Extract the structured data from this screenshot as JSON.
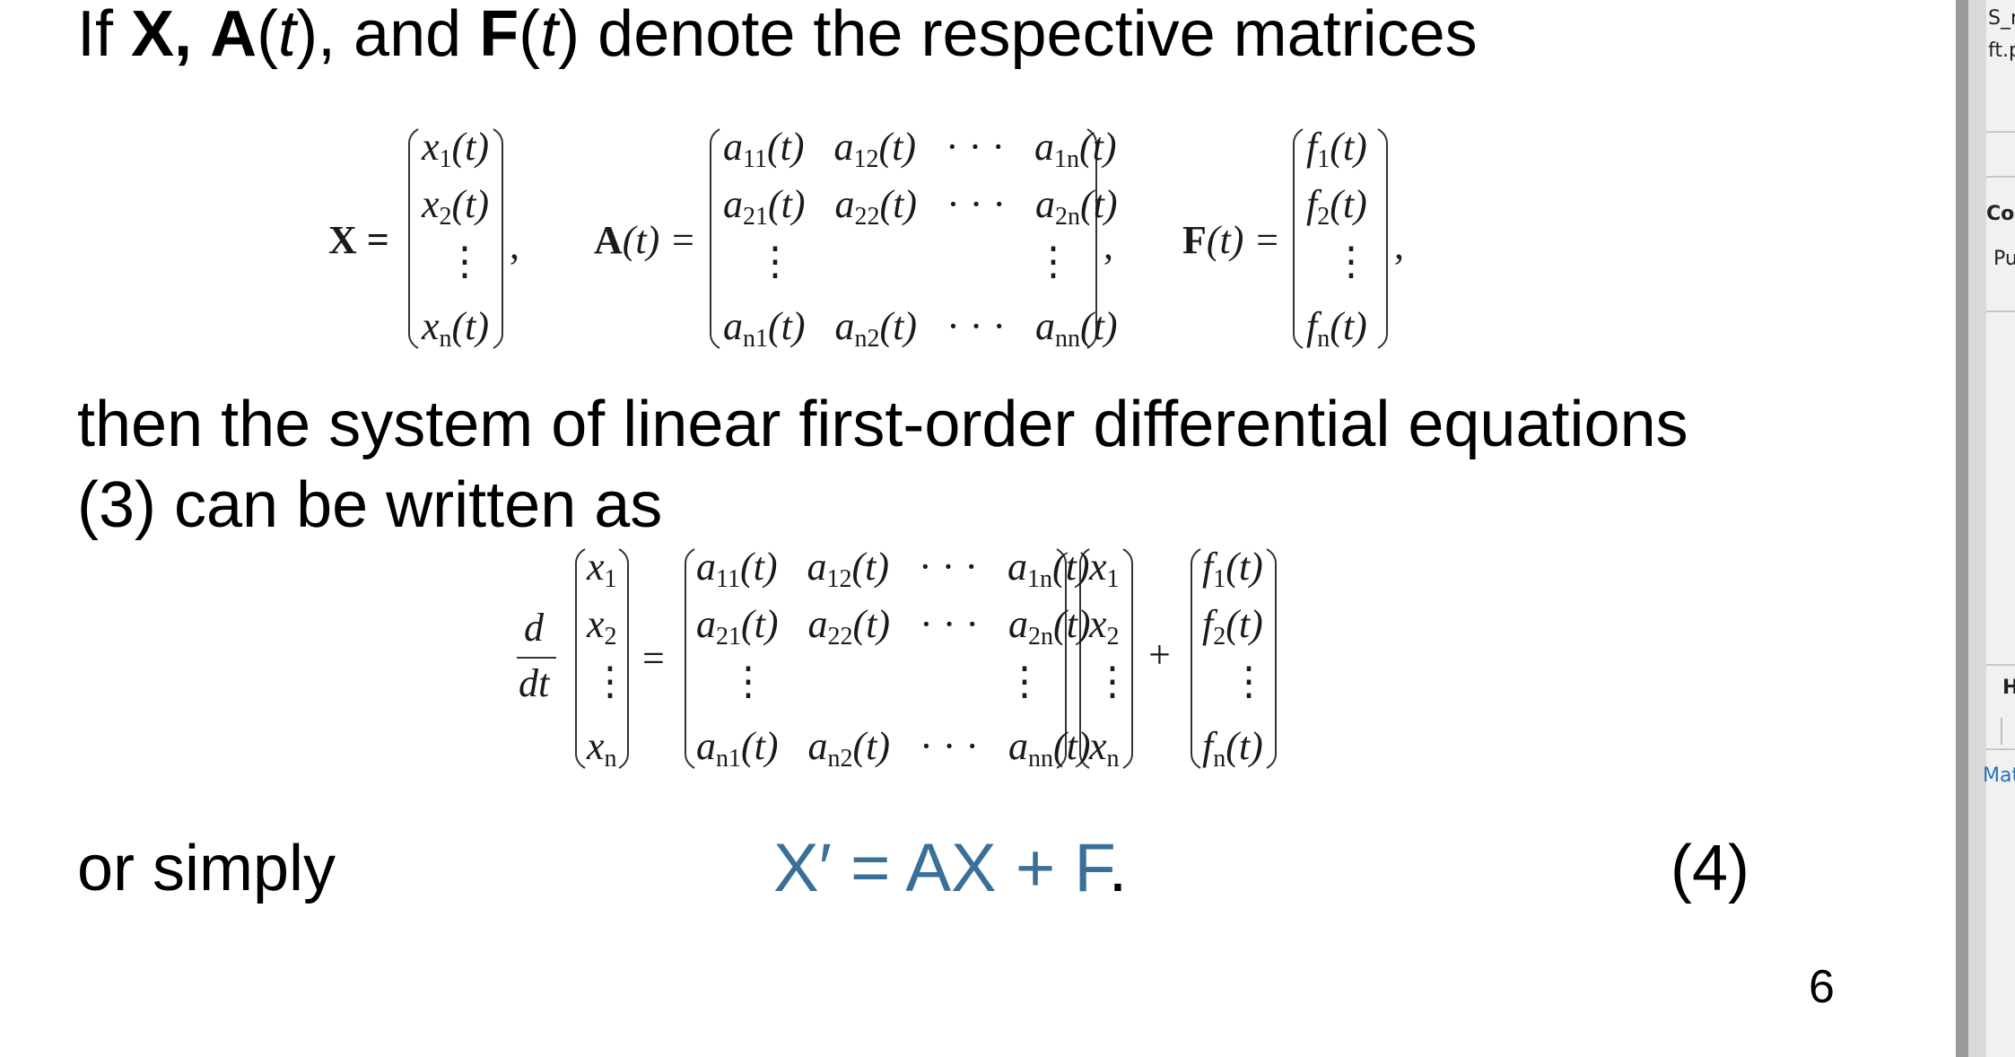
{
  "intro": {
    "if": "If ",
    "x": "X,",
    "a": "A",
    "a_arg": "(",
    "t1": "t",
    "a_close": "), and ",
    "f": "F",
    "f_open": "(",
    "t2": "t",
    "rest": ") denote the respective matrices"
  },
  "defs": {
    "x_label": "X =",
    "x_entries": [
      "x",
      "x",
      "x"
    ],
    "x_subs": [
      "1",
      "2",
      "n"
    ],
    "arg": "(t)",
    "vdots": "⋮",
    "cdots": "· · ·",
    "comma": ",",
    "a_label_bold": "A",
    "a_label_rest": "(t) =",
    "a_rows": [
      [
        "a",
        "11",
        "a",
        "12",
        "a",
        "1n"
      ],
      [
        "a",
        "21",
        "a",
        "22",
        "a",
        "2n"
      ],
      [
        "a",
        "n1",
        "a",
        "n2",
        "a",
        "nn"
      ]
    ],
    "f_label_bold": "F",
    "f_label_rest": "(t) =",
    "f_entries": [
      "f",
      "f",
      "f"
    ],
    "f_subs": [
      "1",
      "2",
      "n"
    ]
  },
  "statement": {
    "line1": "then the system of linear first-order differential equations",
    "line2": "(3) can be written as"
  },
  "matrix_eq": {
    "d": "d",
    "dt": "dt",
    "equals": "=",
    "plus": "+",
    "x_entries": [
      "x",
      "x",
      "x"
    ],
    "x_subs": [
      "1",
      "2",
      "n"
    ]
  },
  "simple": {
    "or_simply": "or simply",
    "equation": "X′ = AX + F",
    "period": ".",
    "number": "(4)"
  },
  "page_number": "6",
  "side_panel": {
    "top1": "S_r",
    "top2": "ft.p",
    "item1": "Co",
    "item2": "Pu",
    "item3": "H",
    "item4": "Mat"
  },
  "colors": {
    "equation_blue": "#3a6f98",
    "panel_gray": "#d9d9d9"
  }
}
